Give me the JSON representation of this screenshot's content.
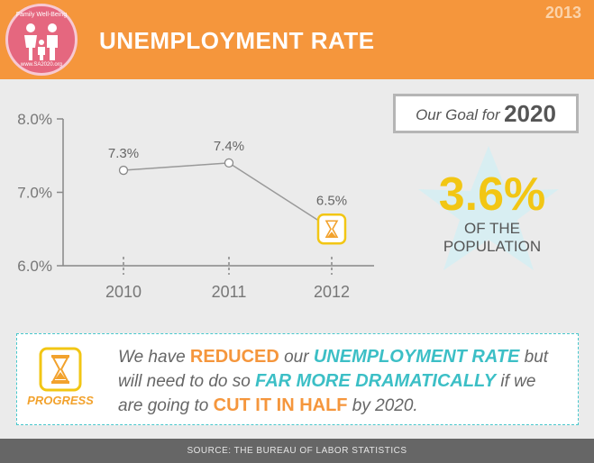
{
  "header": {
    "title": "UNEMPLOYMENT RATE",
    "year": "2013",
    "logo_top": "Family Well-Being",
    "logo_bottom": "www.SA2020.org"
  },
  "chart_data": {
    "type": "line",
    "categories": [
      "2010",
      "2011",
      "2012"
    ],
    "values": [
      7.3,
      7.4,
      6.5
    ],
    "data_labels": [
      "7.3%",
      "7.4%",
      "6.5%"
    ],
    "y_ticks": [
      "8.0%",
      "7.0%",
      "6.0%"
    ],
    "ylim": [
      6.0,
      8.0
    ],
    "grid": false,
    "line_color": "#999999",
    "marker_highlight_color": "#f2c614"
  },
  "goal": {
    "label": "Our Goal for",
    "year": "2020",
    "value": "3.6%",
    "sub_line1": "OF THE",
    "sub_line2": "POPULATION"
  },
  "progress": {
    "label": "PROGRESS",
    "t1": "We have",
    "h1": "REDUCED",
    "t2": "our",
    "h2": "UNEMPLOYMENT RATE",
    "t3": "but will need to do so",
    "h3": "FAR MORE DRAMATICALLY",
    "t4": "if we are going to",
    "h4": "CUT IT IN HALF",
    "t5": "by 2020."
  },
  "footer": {
    "source": "SOURCE: THE BUREAU OF LABOR STATISTICS"
  },
  "colors": {
    "orange": "#f5963c",
    "teal": "#3cbfc6",
    "yellow": "#f2c614",
    "pink": "#e5677f"
  }
}
